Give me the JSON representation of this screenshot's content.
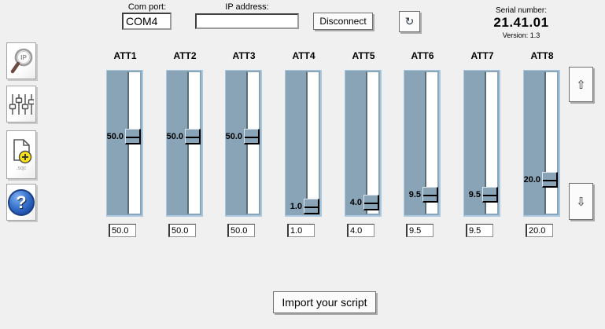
{
  "top_bar": {
    "com_port_label": "Com port:",
    "com_port_value": "COM4",
    "ip_address_label": "IP address:",
    "ip_address_value": "",
    "disconnect_label": "Disconnect",
    "refresh_icon": "↻",
    "serial_label": "Serial number:",
    "serial_value": "21.41.01",
    "version_label": "Version: 1.3"
  },
  "sidebar": {
    "buttons": [
      {
        "name": "search-ip",
        "icon": "magnifier-ip-icon",
        "lens_text": "IP"
      },
      {
        "name": "levels",
        "icon": "faders-icon"
      },
      {
        "name": "add-script",
        "icon": "document-plus-icon",
        "caption": ".sqc"
      },
      {
        "name": "help",
        "icon": "question-mark-icon",
        "glyph": "?"
      }
    ]
  },
  "attenuators": {
    "items": [
      {
        "label": "ATT1",
        "value": "50.0"
      },
      {
        "label": "ATT2",
        "value": "50.0"
      },
      {
        "label": "ATT3",
        "value": "50.0"
      },
      {
        "label": "ATT4",
        "value": "1.0"
      },
      {
        "label": "ATT5",
        "value": "4.0"
      },
      {
        "label": "ATT6",
        "value": "9.5"
      },
      {
        "label": "ATT7",
        "value": "9.5"
      },
      {
        "label": "ATT8",
        "value": "20.0"
      }
    ]
  },
  "right_controls": {
    "up_icon": "⇧",
    "down_icon": "⇩"
  },
  "footer": {
    "import_button_label": "Import your script"
  },
  "colors": {
    "background": "#f0f0f0",
    "slider_panel": "#88a4b6",
    "slider_panel_border": "#a9c7de",
    "track_edge": "#5a6e78",
    "help_blue": "#2a5fc0"
  }
}
